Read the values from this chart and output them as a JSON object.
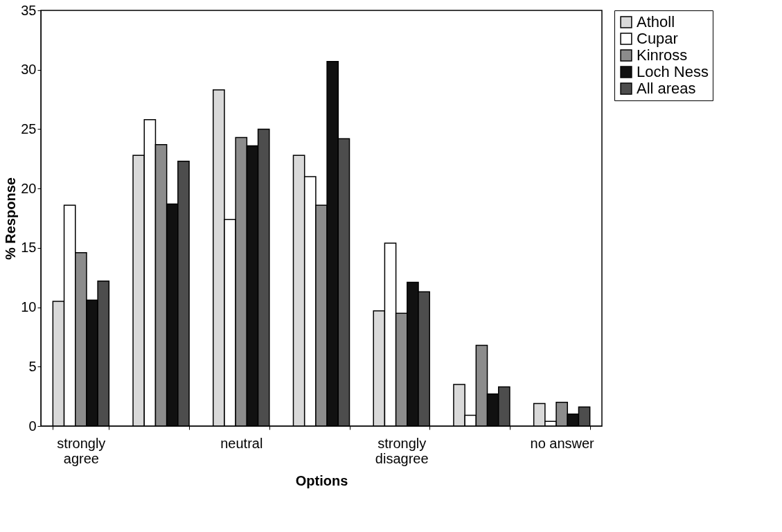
{
  "chart_data": {
    "type": "bar",
    "xlabel": "Options",
    "ylabel": "% Response",
    "categories": [
      "strongly agree",
      null,
      "neutral",
      null,
      "strongly disagree",
      null,
      "no answer"
    ],
    "series": [
      {
        "name": "Atholl",
        "color": "#d9d9d9",
        "values": [
          10.5,
          22.8,
          28.3,
          22.8,
          9.7,
          3.5,
          1.9
        ]
      },
      {
        "name": "Cupar",
        "color": "#ffffff",
        "values": [
          18.6,
          25.8,
          17.4,
          21.0,
          15.4,
          0.9,
          0.4
        ]
      },
      {
        "name": "Kinross",
        "color": "#8c8c8c",
        "values": [
          14.6,
          23.7,
          24.3,
          18.6,
          9.5,
          6.8,
          2.0
        ]
      },
      {
        "name": "Loch Ness",
        "color": "#111111",
        "values": [
          10.6,
          18.7,
          23.6,
          30.7,
          12.1,
          2.7,
          1.0
        ]
      },
      {
        "name": "All areas",
        "color": "#4d4d4d",
        "values": [
          12.2,
          22.3,
          25.0,
          24.2,
          11.3,
          3.3,
          1.6
        ]
      }
    ],
    "ylim": [
      0,
      35
    ],
    "yticks": [
      0,
      5,
      10,
      15,
      20,
      25,
      30,
      35
    ],
    "grid": false,
    "legend": "right"
  }
}
